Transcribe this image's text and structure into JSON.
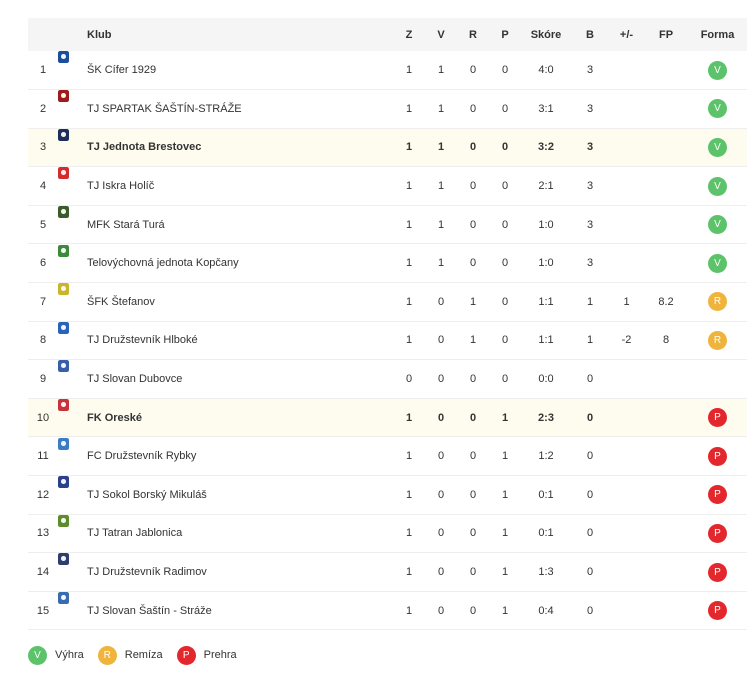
{
  "columns": {
    "klub": "Klub",
    "z": "Z",
    "v": "V",
    "r": "R",
    "p": "P",
    "skore": "Skóre",
    "b": "B",
    "diff": "+/-",
    "fp": "FP",
    "forma": "Forma"
  },
  "form_colors": {
    "V": "#5cc36b",
    "R": "#f0b43c",
    "P": "#e3282d"
  },
  "rows": [
    {
      "pos": "1",
      "club": "ŠK Cífer 1929",
      "z": "1",
      "v": "1",
      "r": "0",
      "p": "0",
      "score": "4:0",
      "b": "3",
      "diff": "",
      "fp": "",
      "form": "V",
      "logo_color": "#1a4fa0",
      "highlight": false
    },
    {
      "pos": "2",
      "club": "TJ SPARTAK ŠAŠTÍN-STRÁŽE",
      "z": "1",
      "v": "1",
      "r": "0",
      "p": "0",
      "score": "3:1",
      "b": "3",
      "diff": "",
      "fp": "",
      "form": "V",
      "logo_color": "#9b1c1c",
      "highlight": false
    },
    {
      "pos": "3",
      "club": "TJ Jednota Brestovec",
      "z": "1",
      "v": "1",
      "r": "0",
      "p": "0",
      "score": "3:2",
      "b": "3",
      "diff": "",
      "fp": "",
      "form": "V",
      "logo_color": "#1c2f5a",
      "highlight": true
    },
    {
      "pos": "4",
      "club": "TJ Iskra Holíč",
      "z": "1",
      "v": "1",
      "r": "0",
      "p": "0",
      "score": "2:1",
      "b": "3",
      "diff": "",
      "fp": "",
      "form": "V",
      "logo_color": "#d62b2b",
      "highlight": false
    },
    {
      "pos": "5",
      "club": "MFK Stará Turá",
      "z": "1",
      "v": "1",
      "r": "0",
      "p": "0",
      "score": "1:0",
      "b": "3",
      "diff": "",
      "fp": "",
      "form": "V",
      "logo_color": "#3d5a2a",
      "highlight": false
    },
    {
      "pos": "6",
      "club": "Telovýchovná jednota Kopčany",
      "z": "1",
      "v": "1",
      "r": "0",
      "p": "0",
      "score": "1:0",
      "b": "3",
      "diff": "",
      "fp": "",
      "form": "V",
      "logo_color": "#3b8a3b",
      "highlight": false
    },
    {
      "pos": "7",
      "club": "ŠFK Štefanov",
      "z": "1",
      "v": "0",
      "r": "1",
      "p": "0",
      "score": "1:1",
      "b": "1",
      "diff": "1",
      "fp": "8.2",
      "form": "R",
      "logo_color": "#c9b52a",
      "highlight": false
    },
    {
      "pos": "8",
      "club": "TJ Družstevník Hlboké",
      "z": "1",
      "v": "0",
      "r": "1",
      "p": "0",
      "score": "1:1",
      "b": "1",
      "diff": "-2",
      "fp": "8",
      "form": "R",
      "logo_color": "#2a64b8",
      "highlight": false
    },
    {
      "pos": "9",
      "club": "TJ Slovan Dubovce",
      "z": "0",
      "v": "0",
      "r": "0",
      "p": "0",
      "score": "0:0",
      "b": "0",
      "diff": "",
      "fp": "",
      "form": "",
      "logo_color": "#3a5fa8",
      "highlight": false
    },
    {
      "pos": "10",
      "club": "FK Oreské",
      "z": "1",
      "v": "0",
      "r": "0",
      "p": "1",
      "score": "2:3",
      "b": "0",
      "diff": "",
      "fp": "",
      "form": "P",
      "logo_color": "#c8323a",
      "highlight": true
    },
    {
      "pos": "11",
      "club": "FC Družstevník Rybky",
      "z": "1",
      "v": "0",
      "r": "0",
      "p": "1",
      "score": "1:2",
      "b": "0",
      "diff": "",
      "fp": "",
      "form": "P",
      "logo_color": "#3c7cc4",
      "highlight": false
    },
    {
      "pos": "12",
      "club": "TJ Sokol Borský Mikuláš",
      "z": "1",
      "v": "0",
      "r": "0",
      "p": "1",
      "score": "0:1",
      "b": "0",
      "diff": "",
      "fp": "",
      "form": "P",
      "logo_color": "#2b3f8c",
      "highlight": false
    },
    {
      "pos": "13",
      "club": "TJ Tatran Jablonica",
      "z": "1",
      "v": "0",
      "r": "0",
      "p": "1",
      "score": "0:1",
      "b": "0",
      "diff": "",
      "fp": "",
      "form": "P",
      "logo_color": "#5f8c2a",
      "highlight": false
    },
    {
      "pos": "14",
      "club": "TJ Družstevník Radimov",
      "z": "1",
      "v": "0",
      "r": "0",
      "p": "1",
      "score": "1:3",
      "b": "0",
      "diff": "",
      "fp": "",
      "form": "P",
      "logo_color": "#2c3e6e",
      "highlight": false
    },
    {
      "pos": "15",
      "club": "TJ Slovan Šaštín - Stráže",
      "z": "1",
      "v": "0",
      "r": "0",
      "p": "1",
      "score": "0:4",
      "b": "0",
      "diff": "",
      "fp": "",
      "form": "P",
      "logo_color": "#3a6ab0",
      "highlight": false
    }
  ],
  "legend": [
    {
      "letter": "V",
      "label": "Výhra"
    },
    {
      "letter": "R",
      "label": "Remíza"
    },
    {
      "letter": "P",
      "label": "Prehra"
    }
  ]
}
